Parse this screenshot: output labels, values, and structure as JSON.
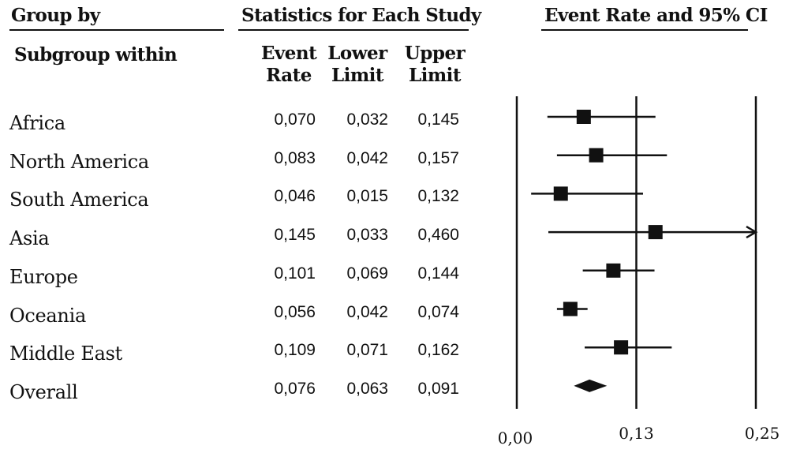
{
  "headers": {
    "group_by": "Group by",
    "statistics": "Statistics for Each Study",
    "plot_title": "Event Rate and 95% CI",
    "subgroup": "Subgroup within",
    "col_event": [
      "Event",
      "Rate"
    ],
    "col_lower": [
      "Lower",
      "Limit"
    ],
    "col_upper": [
      "Upper",
      "Limit"
    ]
  },
  "rows": [
    {
      "label": "Africa",
      "event": "0,070",
      "lower": "0,032",
      "upper": "0,145"
    },
    {
      "label": "North America",
      "event": "0,083",
      "lower": "0,042",
      "upper": "0,157"
    },
    {
      "label": "South America",
      "event": "0,046",
      "lower": "0,015",
      "upper": "0,132"
    },
    {
      "label": "Asia",
      "event": "0,145",
      "lower": "0,033",
      "upper": "0,460"
    },
    {
      "label": "Europe",
      "event": "0,101",
      "lower": "0,069",
      "upper": "0,144"
    },
    {
      "label": "Oceania",
      "event": "0,056",
      "lower": "0,042",
      "upper": "0,074"
    },
    {
      "label": "Middle East",
      "event": "0,109",
      "lower": "0,071",
      "upper": "0,162"
    },
    {
      "label": "Overall",
      "event": "0,076",
      "lower": "0,063",
      "upper": "0,091"
    }
  ],
  "chart_data": {
    "type": "forest",
    "title": "Event Rate and 95% CI",
    "x_ticks": [
      "0,00",
      "0,13",
      "0,25"
    ],
    "x_tick_values": [
      0,
      0.125,
      0.25
    ],
    "xlim": [
      0,
      0.25
    ],
    "reference_line": 0.125,
    "series": [
      {
        "label": "Africa",
        "estimate": 0.07,
        "lower": 0.032,
        "upper": 0.145,
        "marker": "square"
      },
      {
        "label": "North America",
        "estimate": 0.083,
        "lower": 0.042,
        "upper": 0.157,
        "marker": "square"
      },
      {
        "label": "South America",
        "estimate": 0.046,
        "lower": 0.015,
        "upper": 0.132,
        "marker": "square"
      },
      {
        "label": "Asia",
        "estimate": 0.145,
        "lower": 0.033,
        "upper": 0.46,
        "marker": "square",
        "truncated_upper": true
      },
      {
        "label": "Europe",
        "estimate": 0.101,
        "lower": 0.069,
        "upper": 0.144,
        "marker": "square"
      },
      {
        "label": "Oceania",
        "estimate": 0.056,
        "lower": 0.042,
        "upper": 0.074,
        "marker": "square"
      },
      {
        "label": "Middle East",
        "estimate": 0.109,
        "lower": 0.071,
        "upper": 0.162,
        "marker": "square"
      },
      {
        "label": "Overall",
        "estimate": 0.076,
        "lower": 0.063,
        "upper": 0.091,
        "marker": "diamond"
      }
    ],
    "colors": {
      "ink": "#111111"
    }
  }
}
